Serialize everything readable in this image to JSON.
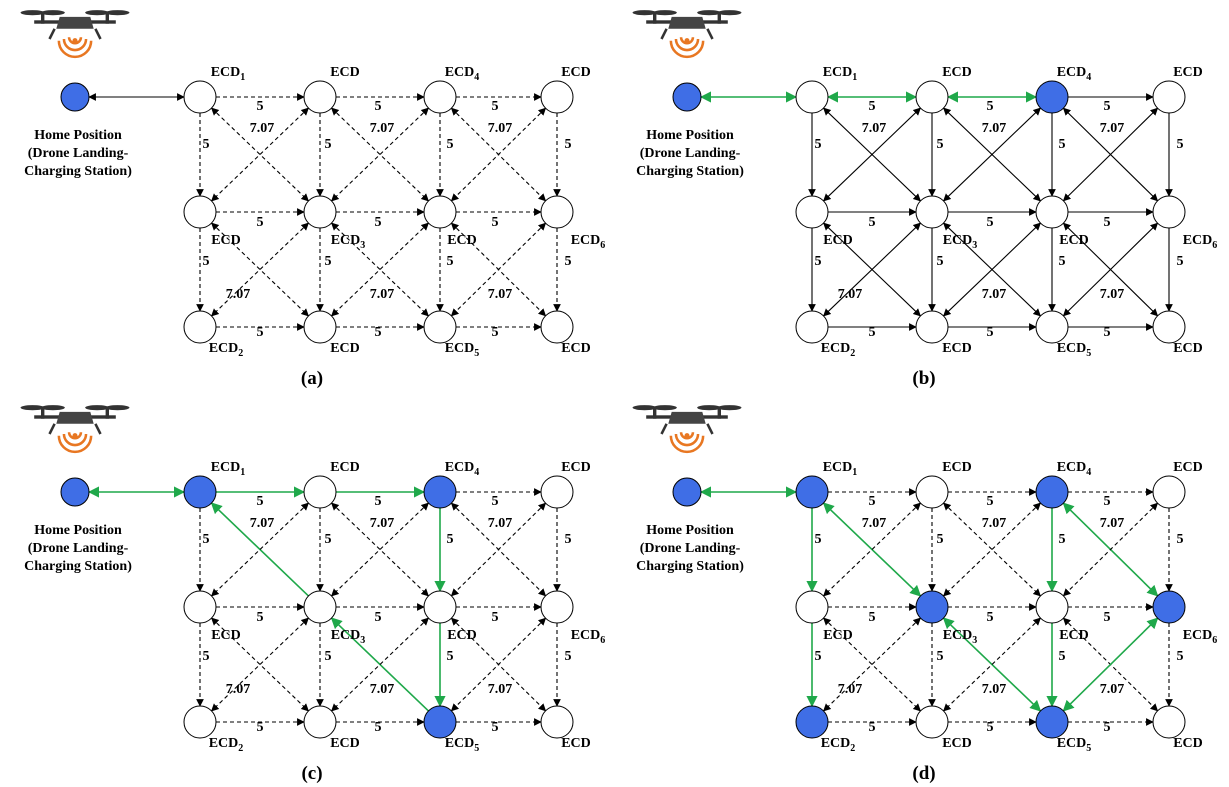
{
  "panels": [
    {
      "caption": "(a)",
      "home_label": [
        "Home Position",
        "(Drone Landing-",
        "Charging Station)"
      ],
      "nodes": [
        {
          "text": "ECD",
          "sub": "1"
        },
        {
          "text": "ECD"
        },
        {
          "text": "ECD",
          "sub": "4"
        },
        {
          "text": "ECD"
        },
        {
          "text": "ECD"
        },
        {
          "text": "ECD",
          "sub": "3"
        },
        {
          "text": "ECD"
        },
        {
          "text": "ECD",
          "sub": "6"
        },
        {
          "text": "ECD",
          "sub": "2"
        },
        {
          "text": "ECD"
        },
        {
          "text": "ECD",
          "sub": "5"
        },
        {
          "text": "ECD"
        }
      ],
      "edge_labels": [
        "5",
        "5",
        "5",
        "5",
        "5",
        "5",
        "5",
        "5",
        "5",
        "5",
        "5",
        "5",
        "5",
        "5",
        "5",
        "5",
        "5",
        "7.07",
        "7.07",
        "7.07",
        "7.07",
        "7.07",
        "7.07"
      ]
    },
    {
      "caption": "(b)",
      "home_label": [
        "Home Position",
        "(Drone Landing-",
        "Charging Station)"
      ],
      "nodes": [
        {
          "text": "ECD",
          "sub": "1"
        },
        {
          "text": "ECD"
        },
        {
          "text": "ECD",
          "sub": "4"
        },
        {
          "text": "ECD"
        },
        {
          "text": "ECD"
        },
        {
          "text": "ECD",
          "sub": "3"
        },
        {
          "text": "ECD"
        },
        {
          "text": "ECD",
          "sub": "6"
        },
        {
          "text": "ECD",
          "sub": "2"
        },
        {
          "text": "ECD"
        },
        {
          "text": "ECD",
          "sub": "5"
        },
        {
          "text": "ECD"
        }
      ],
      "edge_labels": [
        "5",
        "5",
        "5",
        "5",
        "5",
        "5",
        "5",
        "5",
        "5",
        "5",
        "5",
        "5",
        "5",
        "5",
        "5",
        "5",
        "5",
        "7.07",
        "7.07",
        "7.07",
        "7.07",
        "7.07",
        "7.07"
      ]
    },
    {
      "caption": "(c)",
      "home_label": [
        "Home Position",
        "(Drone Landing-",
        "Charging Station)"
      ],
      "nodes": [
        {
          "text": "ECD",
          "sub": "1"
        },
        {
          "text": "ECD"
        },
        {
          "text": "ECD",
          "sub": "4"
        },
        {
          "text": "ECD"
        },
        {
          "text": "ECD"
        },
        {
          "text": "ECD",
          "sub": "3"
        },
        {
          "text": "ECD"
        },
        {
          "text": "ECD",
          "sub": "6"
        },
        {
          "text": "ECD",
          "sub": "2"
        },
        {
          "text": "ECD"
        },
        {
          "text": "ECD",
          "sub": "5"
        },
        {
          "text": "ECD"
        }
      ],
      "edge_labels": [
        "5",
        "5",
        "5",
        "5",
        "5",
        "5",
        "5",
        "5",
        "5",
        "5",
        "5",
        "5",
        "5",
        "5",
        "5",
        "5",
        "5",
        "7.07",
        "7.07",
        "7.07",
        "7.07",
        "7.07",
        "7.07"
      ]
    },
    {
      "caption": "(d)",
      "home_label": [
        "Home Position",
        "(Drone Landing-",
        "Charging Station)"
      ],
      "nodes": [
        {
          "text": "ECD",
          "sub": "1"
        },
        {
          "text": "ECD"
        },
        {
          "text": "ECD",
          "sub": "4"
        },
        {
          "text": "ECD"
        },
        {
          "text": "ECD"
        },
        {
          "text": "ECD",
          "sub": "3"
        },
        {
          "text": "ECD"
        },
        {
          "text": "ECD",
          "sub": "6"
        },
        {
          "text": "ECD",
          "sub": "2"
        },
        {
          "text": "ECD"
        },
        {
          "text": "ECD",
          "sub": "5"
        },
        {
          "text": "ECD"
        }
      ],
      "edge_labels": [
        "5",
        "5",
        "5",
        "5",
        "5",
        "5",
        "5",
        "5",
        "5",
        "5",
        "5",
        "5",
        "5",
        "5",
        "5",
        "5",
        "5",
        "7.07",
        "7.07",
        "7.07",
        "7.07",
        "7.07",
        "7.07"
      ]
    }
  ]
}
